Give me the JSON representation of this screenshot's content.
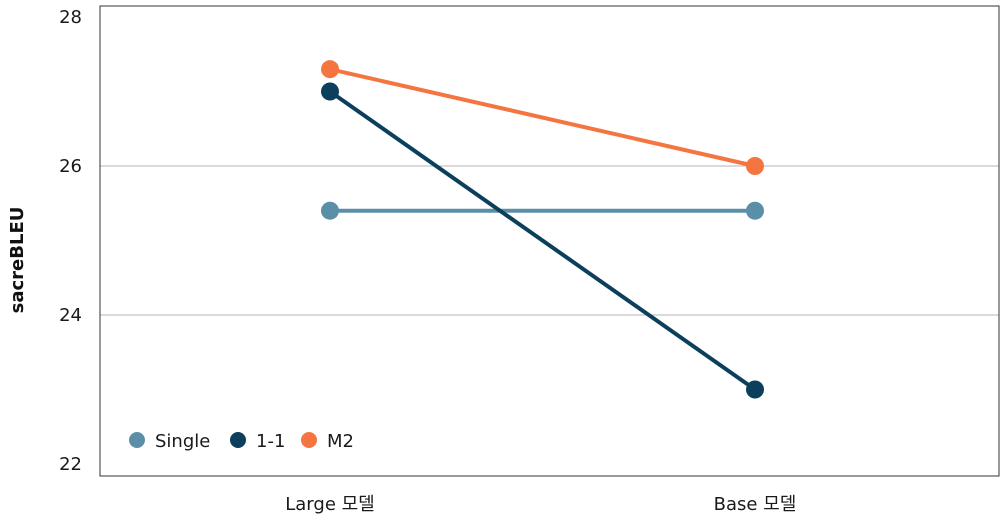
{
  "chart_data": {
    "type": "line",
    "title": "",
    "xlabel": "",
    "ylabel": "sacreBLEU",
    "categories": [
      "Large 모델",
      "Base 모델"
    ],
    "ylim": [
      22,
      28
    ],
    "yticks": [
      "22",
      "24",
      "26",
      "28"
    ],
    "grid": true,
    "legend_position": "bottom-left",
    "series": [
      {
        "name": "Single",
        "values": [
          25.4,
          25.4
        ],
        "color": "#5b8fa8"
      },
      {
        "name": "1-1",
        "values": [
          27.0,
          23.0
        ],
        "color": "#0b3f5c"
      },
      {
        "name": "M2",
        "values": [
          27.3,
          26.0
        ],
        "color": "#f47540"
      }
    ]
  }
}
